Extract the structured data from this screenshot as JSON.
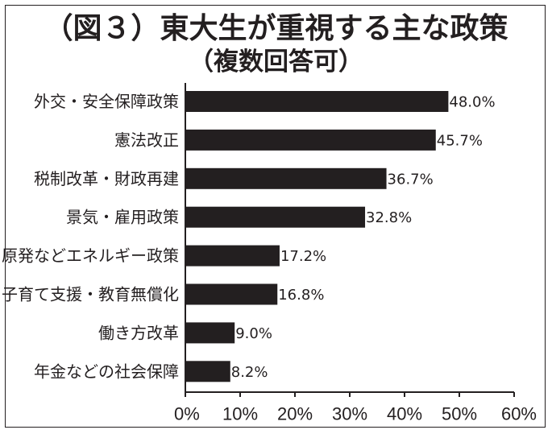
{
  "chart_data": {
    "type": "bar",
    "orientation": "horizontal",
    "title": "（図３）東大生が重視する主な政策",
    "subtitle": "（複数回答可）",
    "categories": [
      "外交・安全保障政策",
      "憲法改正",
      "税制改革・財政再建",
      "景気・雇用政策",
      "原発などエネルギー政策",
      "子育て支援・教育無償化",
      "働き方改革",
      "年金などの社会保障"
    ],
    "values": [
      48.0,
      45.7,
      36.7,
      32.8,
      17.2,
      16.8,
      9.0,
      8.2
    ],
    "value_labels": [
      "48.0%",
      "45.7%",
      "36.7%",
      "32.8%",
      "17.2%",
      "16.8%",
      "9.0%",
      "8.2%"
    ],
    "xlim": [
      0,
      60
    ],
    "x_ticks": [
      "0%",
      "10%",
      "20%",
      "30%",
      "40%",
      "50%",
      "60%"
    ],
    "grid": false,
    "bar_color": "#231f20"
  }
}
